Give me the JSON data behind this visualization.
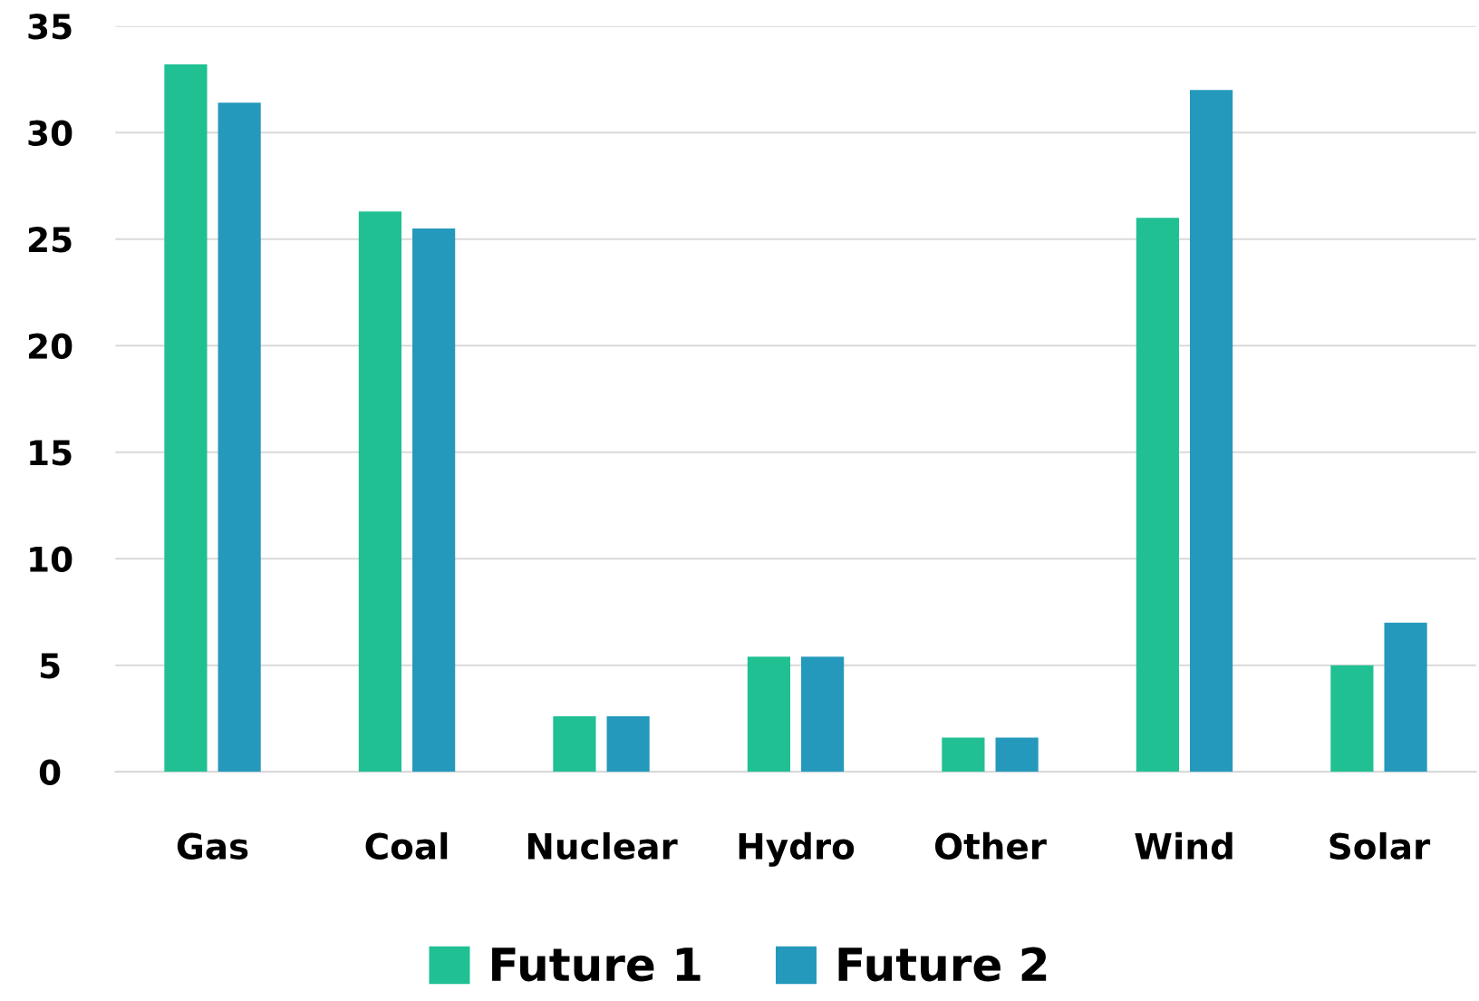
{
  "chart_data": {
    "type": "bar",
    "categories": [
      "Gas",
      "Coal",
      "Nuclear",
      "Hydro",
      "Other",
      "Wind",
      "Solar"
    ],
    "series": [
      {
        "name": "Future 1",
        "color": "#20c093",
        "values": [
          33.2,
          26.3,
          2.6,
          5.4,
          1.6,
          26.0,
          5.0
        ]
      },
      {
        "name": "Future 2",
        "color": "#2499bc",
        "values": [
          31.4,
          25.5,
          2.6,
          5.4,
          1.6,
          32.0,
          7.0
        ]
      }
    ],
    "ylim": [
      0,
      35
    ],
    "yticks": [
      0,
      5,
      10,
      15,
      20,
      25,
      30,
      35
    ],
    "grid": "y",
    "legend": "bottom"
  }
}
